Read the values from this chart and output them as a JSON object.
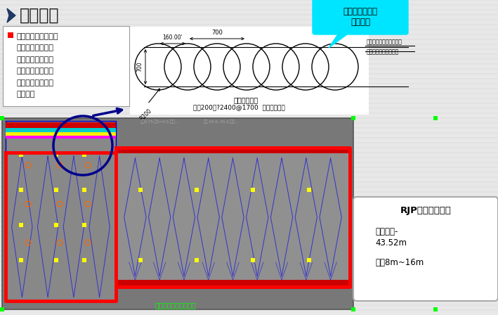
{
  "title": "设计方案",
  "bg_color": "#e8e8e8",
  "title_color": "#1a1a1a",
  "chevron_color": "#1f3864",
  "bullet_text_lines": [
    "在既有地连墙外侧，",
    "设置连续旋喷桩止",
    "水帷幕，加深地连",
    "墙底部止水帷幕长",
    "度，上部与既有地",
    "连墙搭接"
  ],
  "callout_text": "转角处、取芯处\n采用全圆",
  "callout_bg": "#00e5ff",
  "dim_text1": "取芯的位置建议采用全圆",
  "dim_text2": "取转角处全圆中心位置",
  "label_160": "160.00'",
  "label_700h": "700",
  "label_700v": "700",
  "label_R200": "R200",
  "water_curtain_title": "止水帷幕大样",
  "water_curtain_desc": "采用200度?2400@1700  局部调整间距",
  "rjp_title": "RJP工法止水帷幕",
  "rjp_bullet1a": "桩底标高-",
  "rjp_bullet1b": "43.52m",
  "rjp_bullet2": "桩长8m~16m",
  "plan_bg": "#787878",
  "plan_inner_bg": "#909090",
  "red_color": "#ff0000",
  "blue_dark": "#00008b",
  "blue_med": "#0000cc",
  "cyan_color": "#00e5ff",
  "green_color": "#00ff00",
  "yellow_color": "#ffff00",
  "magenta_color": "#ff00ff",
  "black_color": "#000000"
}
